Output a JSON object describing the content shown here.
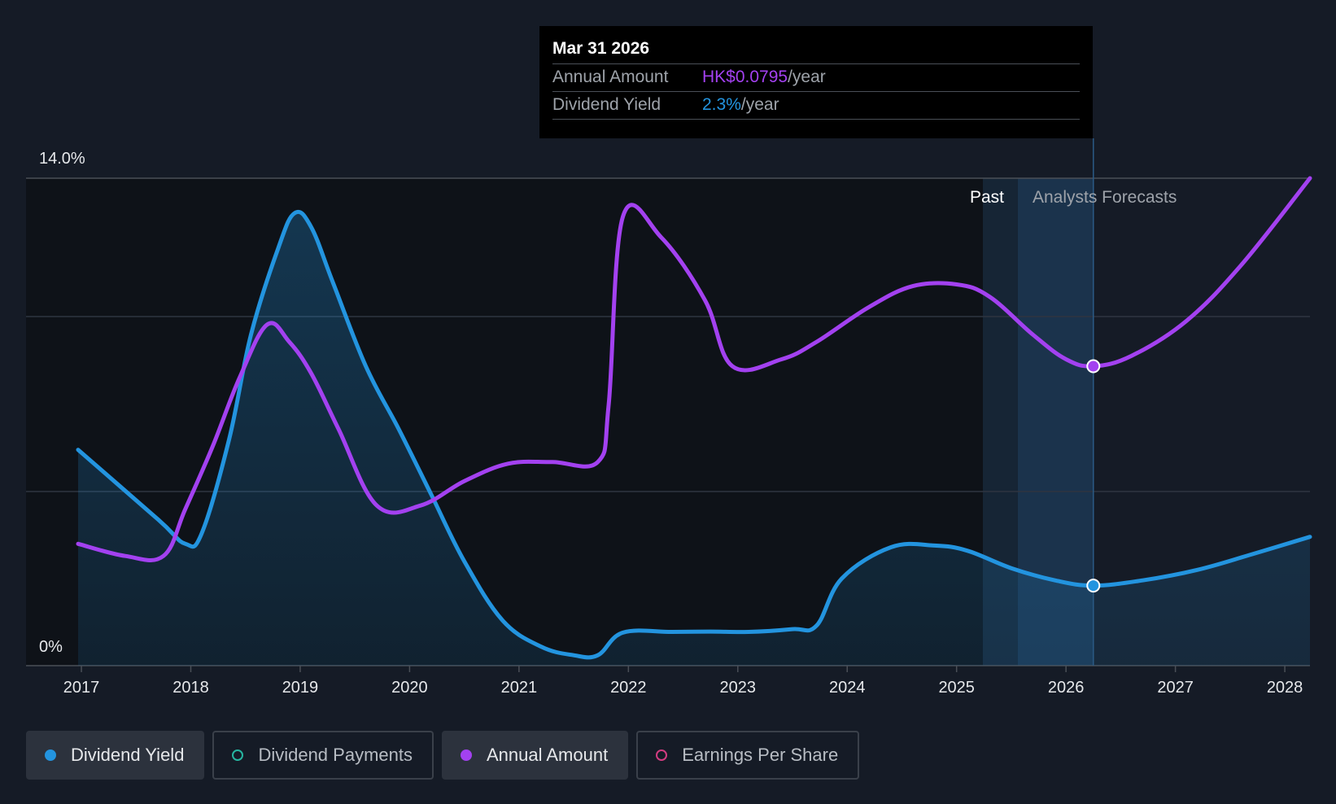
{
  "tooltip": {
    "date": "Mar 31 2026",
    "annual_amount_label": "Annual Amount",
    "annual_amount_value": "HK$0.0795",
    "annual_amount_unit": "/year",
    "yield_label": "Dividend Yield",
    "yield_value": "2.3%",
    "yield_unit": "/year"
  },
  "regions": {
    "past": "Past",
    "forecast": "Analysts Forecasts"
  },
  "legend": [
    {
      "label": "Dividend Yield",
      "color": "#2394df",
      "active": true
    },
    {
      "label": "Dividend Payments",
      "color": "#26b5a0",
      "active": false
    },
    {
      "label": "Annual Amount",
      "color": "#a341f0",
      "active": true
    },
    {
      "label": "Earnings Per Share",
      "color": "#d23c80",
      "active": false
    }
  ],
  "colors": {
    "yield": "#2394df",
    "amount": "#a341f0",
    "background": "#151b26"
  },
  "chart_data": {
    "type": "line",
    "y_axis": {
      "min": 0,
      "max": 14.0,
      "tick_labels": [
        "0%",
        "14.0%"
      ],
      "gridlines": true
    },
    "x_axis": {
      "min": 2016.97,
      "max": 2028.23,
      "ticks": [
        2017,
        2018,
        2019,
        2020,
        2021,
        2022,
        2023,
        2024,
        2025,
        2026,
        2027,
        2028
      ]
    },
    "past_end": 2025.24,
    "forecast_start": 2025.56,
    "highlight": 2026.25,
    "series": [
      {
        "name": "Dividend Yield",
        "unit": "%",
        "points": [
          [
            2016.97,
            6.2
          ],
          [
            2017.7,
            4.2
          ],
          [
            2017.95,
            3.5
          ],
          [
            2018.1,
            3.8
          ],
          [
            2018.35,
            6.5
          ],
          [
            2018.55,
            9.5
          ],
          [
            2018.8,
            12.0
          ],
          [
            2018.95,
            13.0
          ],
          [
            2019.1,
            12.6
          ],
          [
            2019.3,
            11.0
          ],
          [
            2019.6,
            8.6
          ],
          [
            2019.9,
            6.8
          ],
          [
            2020.2,
            4.9
          ],
          [
            2020.5,
            3.0
          ],
          [
            2020.85,
            1.3
          ],
          [
            2021.2,
            0.55
          ],
          [
            2021.5,
            0.3
          ],
          [
            2021.72,
            0.3
          ],
          [
            2021.95,
            0.95
          ],
          [
            2022.4,
            0.97
          ],
          [
            2022.75,
            0.98
          ],
          [
            2023.1,
            0.97
          ],
          [
            2023.5,
            1.05
          ],
          [
            2023.72,
            1.15
          ],
          [
            2023.95,
            2.5
          ],
          [
            2024.4,
            3.4
          ],
          [
            2024.8,
            3.45
          ],
          [
            2025.1,
            3.3
          ],
          [
            2025.5,
            2.8
          ],
          [
            2025.9,
            2.45
          ],
          [
            2026.25,
            2.3
          ],
          [
            2026.7,
            2.45
          ],
          [
            2027.2,
            2.75
          ],
          [
            2027.7,
            3.2
          ],
          [
            2028.23,
            3.7
          ]
        ]
      },
      {
        "name": "Annual Amount",
        "unit": "relative",
        "points": [
          [
            2016.97,
            3.5
          ],
          [
            2017.4,
            3.15
          ],
          [
            2017.75,
            3.15
          ],
          [
            2017.95,
            4.5
          ],
          [
            2018.2,
            6.3
          ],
          [
            2018.45,
            8.3
          ],
          [
            2018.7,
            9.8
          ],
          [
            2018.9,
            9.3
          ],
          [
            2019.1,
            8.4
          ],
          [
            2019.35,
            6.8
          ],
          [
            2019.7,
            4.6
          ],
          [
            2020.1,
            4.6
          ],
          [
            2020.5,
            5.3
          ],
          [
            2020.9,
            5.8
          ],
          [
            2021.3,
            5.85
          ],
          [
            2021.72,
            5.85
          ],
          [
            2021.82,
            7.5
          ],
          [
            2021.95,
            12.9
          ],
          [
            2022.3,
            12.3
          ],
          [
            2022.7,
            10.5
          ],
          [
            2022.95,
            8.6
          ],
          [
            2023.4,
            8.8
          ],
          [
            2023.72,
            9.3
          ],
          [
            2024.2,
            10.3
          ],
          [
            2024.6,
            10.9
          ],
          [
            2025.0,
            10.95
          ],
          [
            2025.3,
            10.6
          ],
          [
            2025.7,
            9.5
          ],
          [
            2026.0,
            8.8
          ],
          [
            2026.25,
            8.6
          ],
          [
            2026.6,
            8.9
          ],
          [
            2027.1,
            9.9
          ],
          [
            2027.6,
            11.5
          ],
          [
            2028.23,
            14.0
          ]
        ]
      }
    ]
  }
}
